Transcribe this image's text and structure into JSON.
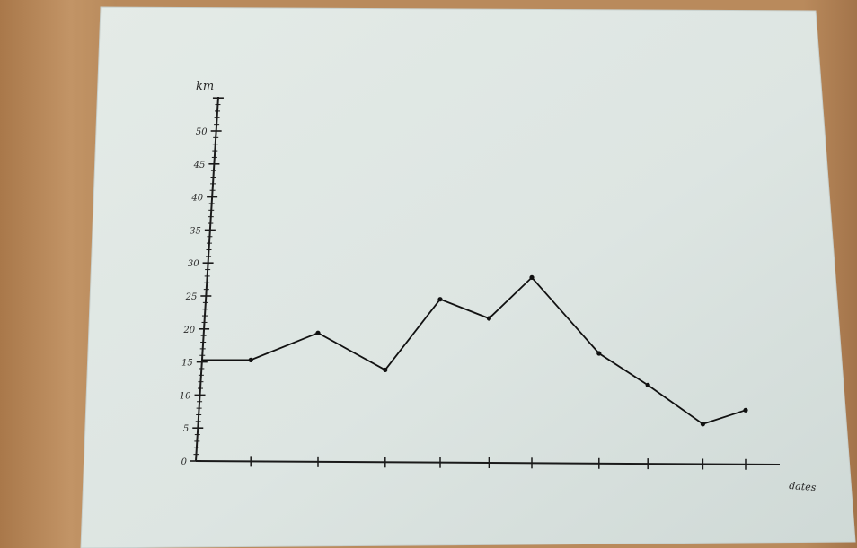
{
  "chart_data": {
    "type": "line",
    "ylabel": "km",
    "xlabel": "dates",
    "ylim": [
      0,
      50
    ],
    "yticks": [
      0,
      5,
      10,
      15,
      20,
      25,
      30,
      35,
      40,
      45,
      50
    ],
    "ytick_labels": [
      "0",
      "5",
      "10",
      "15",
      "20",
      "25",
      "30",
      "35",
      "40",
      "45",
      "50"
    ],
    "categories": [
      "",
      "",
      "",
      "",
      "",
      "",
      "",
      "",
      "",
      ""
    ],
    "x": [
      0.9,
      2,
      3.1,
      4,
      4.8,
      5.5,
      6.6,
      7.4,
      8.3,
      9
    ],
    "values": [
      15.3,
      19.4,
      13.8,
      24.5,
      21.6,
      27.8,
      16.3,
      11.5,
      5.6,
      7.7
    ],
    "grid": false,
    "legend": false
  }
}
